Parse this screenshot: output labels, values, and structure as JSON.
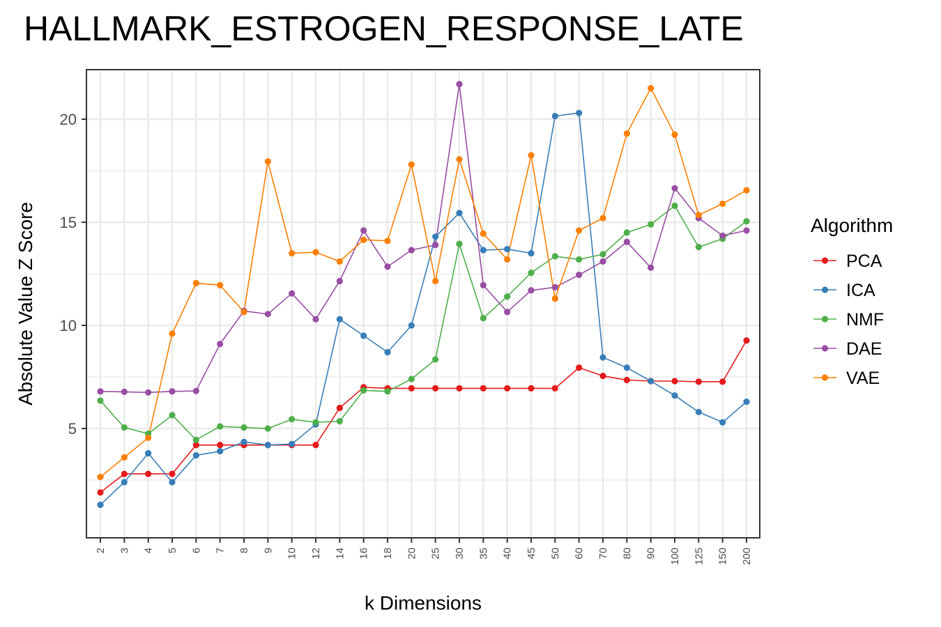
{
  "chart_data": {
    "type": "line",
    "title": "HALLMARK_ESTROGEN_RESPONSE_LATE",
    "xlabel": "k Dimensions",
    "ylabel": "Absolute Value Z Score",
    "legend_title": "Algorithm",
    "legend_position": "right",
    "grid": true,
    "ylim": [
      -0.3,
      22.4
    ],
    "yticks": [
      5,
      10,
      15,
      20
    ],
    "categories": [
      "2",
      "3",
      "4",
      "5",
      "6",
      "7",
      "8",
      "9",
      "10",
      "12",
      "14",
      "16",
      "18",
      "20",
      "25",
      "30",
      "35",
      "40",
      "45",
      "50",
      "60",
      "70",
      "80",
      "90",
      "100",
      "125",
      "150",
      "200"
    ],
    "series": [
      {
        "name": "PCA",
        "color": "#e41a1c",
        "values": [
          1.9,
          2.8,
          2.8,
          2.8,
          4.2,
          4.2,
          4.2,
          4.2,
          4.2,
          4.2,
          6.0,
          7.0,
          6.95,
          6.95,
          6.95,
          6.95,
          6.95,
          6.95,
          6.95,
          6.95,
          7.95,
          7.55,
          7.35,
          7.3,
          7.3,
          7.27,
          7.27,
          9.27
        ]
      },
      {
        "name": "ICA",
        "color": "#377eb8",
        "values": [
          1.3,
          2.4,
          3.8,
          2.4,
          3.7,
          3.9,
          4.35,
          4.2,
          4.25,
          5.2,
          10.3,
          9.5,
          8.7,
          10.0,
          14.3,
          15.45,
          13.65,
          13.7,
          13.5,
          20.15,
          20.3,
          8.45,
          7.95,
          7.3,
          6.6,
          5.8,
          5.3,
          6.3
        ]
      },
      {
        "name": "NMF",
        "color": "#4daf4a",
        "values": [
          6.35,
          5.05,
          4.75,
          5.65,
          4.45,
          5.1,
          5.05,
          5.0,
          5.45,
          5.3,
          5.35,
          6.85,
          6.8,
          7.4,
          8.35,
          13.95,
          10.35,
          11.4,
          12.55,
          13.35,
          13.2,
          13.45,
          14.5,
          14.9,
          15.8,
          13.8,
          14.2,
          15.05
        ]
      },
      {
        "name": "DAE",
        "color": "#984ea3",
        "values": [
          6.8,
          6.78,
          6.75,
          6.8,
          6.82,
          9.1,
          10.7,
          10.55,
          11.55,
          10.3,
          12.15,
          14.6,
          12.85,
          13.65,
          13.9,
          21.7,
          11.95,
          10.65,
          11.7,
          11.85,
          12.45,
          13.1,
          14.05,
          12.8,
          16.65,
          15.2,
          14.35,
          14.6
        ]
      },
      {
        "name": "VAE",
        "color": "#ff7f00",
        "values": [
          2.65,
          3.6,
          4.55,
          9.6,
          12.05,
          11.95,
          10.65,
          17.95,
          13.5,
          13.55,
          13.1,
          14.15,
          14.1,
          17.8,
          12.15,
          18.05,
          14.45,
          13.2,
          18.25,
          11.3,
          14.6,
          15.2,
          19.3,
          21.5,
          19.25,
          15.35,
          15.9,
          16.55
        ]
      }
    ]
  }
}
